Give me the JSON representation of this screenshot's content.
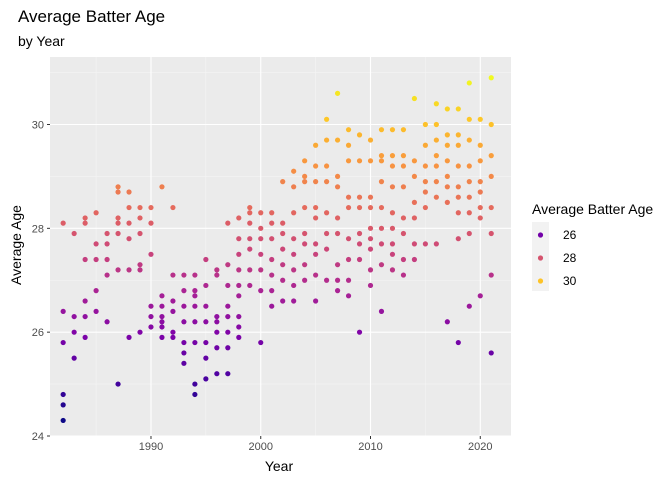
{
  "chart_data": {
    "type": "scatter",
    "title": "Average Batter Age",
    "subtitle": "by Year",
    "xlabel": "Year",
    "ylabel": "Average Age",
    "xlim": [
      1980.8,
      2022.8
    ],
    "ylim": [
      24,
      31.3
    ],
    "x_ticks": [
      1990,
      2000,
      2010,
      2020
    ],
    "y_ticks": [
      24,
      26,
      28,
      30
    ],
    "grid": true,
    "legend": {
      "title": "Average Batter Age",
      "placement": "right",
      "entries": [
        {
          "label": "26",
          "value": 26,
          "color": "#7301a8"
        },
        {
          "label": "28",
          "value": 28,
          "color": "#d5546e"
        },
        {
          "label": "30",
          "value": 30,
          "color": "#fdc328"
        }
      ]
    },
    "color_scale": {
      "min": 24.3,
      "max": 30.9,
      "stops": [
        [
          0.0,
          "#0d0887"
        ],
        [
          0.125,
          "#4c02a1"
        ],
        [
          0.25,
          "#7e03a8"
        ],
        [
          0.375,
          "#a92395"
        ],
        [
          0.5,
          "#cc4778"
        ],
        [
          0.625,
          "#e66c5c"
        ],
        [
          0.75,
          "#f89540"
        ],
        [
          0.875,
          "#fdc527"
        ],
        [
          1.0,
          "#f0f921"
        ]
      ]
    },
    "points": [
      [
        1982,
        28.1
      ],
      [
        1982,
        26.4
      ],
      [
        1982,
        25.8
      ],
      [
        1982,
        24.8
      ],
      [
        1982,
        24.6
      ],
      [
        1982,
        24.3
      ],
      [
        1983,
        27.9
      ],
      [
        1983,
        26.3
      ],
      [
        1983,
        26.0
      ],
      [
        1983,
        25.5
      ],
      [
        1984,
        28.2
      ],
      [
        1984,
        28.1
      ],
      [
        1984,
        27.4
      ],
      [
        1984,
        26.6
      ],
      [
        1984,
        26.3
      ],
      [
        1984,
        25.9
      ],
      [
        1985,
        28.3
      ],
      [
        1985,
        27.7
      ],
      [
        1985,
        27.4
      ],
      [
        1985,
        26.8
      ],
      [
        1985,
        26.4
      ],
      [
        1986,
        27.9
      ],
      [
        1986,
        27.7
      ],
      [
        1986,
        27.4
      ],
      [
        1986,
        27.1
      ],
      [
        1986,
        26.2
      ],
      [
        1987,
        28.8
      ],
      [
        1987,
        28.7
      ],
      [
        1987,
        28.2
      ],
      [
        1987,
        28.1
      ],
      [
        1987,
        27.9
      ],
      [
        1987,
        27.2
      ],
      [
        1987,
        25.0
      ],
      [
        1988,
        28.7
      ],
      [
        1988,
        28.4
      ],
      [
        1988,
        28.1
      ],
      [
        1988,
        27.8
      ],
      [
        1988,
        27.2
      ],
      [
        1988,
        25.9
      ],
      [
        1989,
        28.4
      ],
      [
        1989,
        28.2
      ],
      [
        1989,
        27.9
      ],
      [
        1989,
        27.3
      ],
      [
        1989,
        27.2
      ],
      [
        1989,
        26.0
      ],
      [
        1990,
        28.4
      ],
      [
        1990,
        28.1
      ],
      [
        1990,
        27.5
      ],
      [
        1990,
        26.5
      ],
      [
        1990,
        26.3
      ],
      [
        1990,
        26.1
      ],
      [
        1991,
        28.8
      ],
      [
        1991,
        26.7
      ],
      [
        1991,
        26.5
      ],
      [
        1991,
        26.3
      ],
      [
        1991,
        26.2
      ],
      [
        1991,
        26.1
      ],
      [
        1991,
        25.9
      ],
      [
        1992,
        28.4
      ],
      [
        1992,
        27.1
      ],
      [
        1992,
        26.6
      ],
      [
        1992,
        26.4
      ],
      [
        1992,
        26.0
      ],
      [
        1992,
        25.9
      ],
      [
        1993,
        27.1
      ],
      [
        1993,
        26.8
      ],
      [
        1993,
        26.5
      ],
      [
        1993,
        26.2
      ],
      [
        1993,
        25.8
      ],
      [
        1993,
        25.6
      ],
      [
        1993,
        25.4
      ],
      [
        1994,
        27.1
      ],
      [
        1994,
        26.8
      ],
      [
        1994,
        26.7
      ],
      [
        1994,
        26.5
      ],
      [
        1994,
        26.2
      ],
      [
        1994,
        25.8
      ],
      [
        1994,
        25.0
      ],
      [
        1994,
        24.8
      ],
      [
        1995,
        27.4
      ],
      [
        1995,
        26.9
      ],
      [
        1995,
        26.5
      ],
      [
        1995,
        26.2
      ],
      [
        1995,
        25.8
      ],
      [
        1995,
        25.5
      ],
      [
        1995,
        25.1
      ],
      [
        1996,
        27.2
      ],
      [
        1996,
        27.1
      ],
      [
        1996,
        26.3
      ],
      [
        1996,
        26.2
      ],
      [
        1996,
        26.0
      ],
      [
        1996,
        25.7
      ],
      [
        1996,
        25.2
      ],
      [
        1997,
        28.1
      ],
      [
        1997,
        27.3
      ],
      [
        1997,
        26.9
      ],
      [
        1997,
        26.5
      ],
      [
        1997,
        26.3
      ],
      [
        1997,
        26.0
      ],
      [
        1997,
        25.7
      ],
      [
        1997,
        25.2
      ],
      [
        1998,
        28.2
      ],
      [
        1998,
        27.8
      ],
      [
        1998,
        27.5
      ],
      [
        1998,
        27.2
      ],
      [
        1998,
        26.9
      ],
      [
        1998,
        26.7
      ],
      [
        1998,
        26.3
      ],
      [
        1998,
        26.1
      ],
      [
        1998,
        25.9
      ],
      [
        1999,
        28.4
      ],
      [
        1999,
        28.3
      ],
      [
        1999,
        28.1
      ],
      [
        1999,
        27.8
      ],
      [
        1999,
        27.6
      ],
      [
        1999,
        27.2
      ],
      [
        1999,
        26.9
      ],
      [
        2000,
        28.3
      ],
      [
        2000,
        28.0
      ],
      [
        2000,
        27.8
      ],
      [
        2000,
        27.5
      ],
      [
        2000,
        27.2
      ],
      [
        2000,
        26.8
      ],
      [
        2000,
        25.8
      ],
      [
        2001,
        28.3
      ],
      [
        2001,
        28.1
      ],
      [
        2001,
        27.8
      ],
      [
        2001,
        27.4
      ],
      [
        2001,
        27.1
      ],
      [
        2001,
        26.8
      ],
      [
        2001,
        26.5
      ],
      [
        2002,
        28.9
      ],
      [
        2002,
        28.1
      ],
      [
        2002,
        27.9
      ],
      [
        2002,
        27.6
      ],
      [
        2002,
        27.3
      ],
      [
        2002,
        27.0
      ],
      [
        2002,
        26.6
      ],
      [
        2003,
        29.1
      ],
      [
        2003,
        28.8
      ],
      [
        2003,
        28.3
      ],
      [
        2003,
        27.8
      ],
      [
        2003,
        27.5
      ],
      [
        2003,
        27.2
      ],
      [
        2003,
        26.9
      ],
      [
        2003,
        26.6
      ],
      [
        2004,
        29.3
      ],
      [
        2004,
        29.0
      ],
      [
        2004,
        28.9
      ],
      [
        2004,
        28.4
      ],
      [
        2004,
        27.9
      ],
      [
        2004,
        27.7
      ],
      [
        2004,
        27.3
      ],
      [
        2004,
        27.0
      ],
      [
        2005,
        29.6
      ],
      [
        2005,
        29.2
      ],
      [
        2005,
        28.9
      ],
      [
        2005,
        28.4
      ],
      [
        2005,
        28.2
      ],
      [
        2005,
        27.7
      ],
      [
        2005,
        27.5
      ],
      [
        2005,
        27.1
      ],
      [
        2005,
        26.6
      ],
      [
        2006,
        30.1
      ],
      [
        2006,
        29.7
      ],
      [
        2006,
        29.2
      ],
      [
        2006,
        28.9
      ],
      [
        2006,
        28.3
      ],
      [
        2006,
        27.9
      ],
      [
        2006,
        27.6
      ],
      [
        2006,
        27.0
      ],
      [
        2007,
        30.6
      ],
      [
        2007,
        29.7
      ],
      [
        2007,
        29.0
      ],
      [
        2007,
        28.8
      ],
      [
        2007,
        28.2
      ],
      [
        2007,
        27.9
      ],
      [
        2007,
        27.3
      ],
      [
        2007,
        27.0
      ],
      [
        2007,
        26.8
      ],
      [
        2008,
        29.9
      ],
      [
        2008,
        29.6
      ],
      [
        2008,
        29.3
      ],
      [
        2008,
        28.6
      ],
      [
        2008,
        28.4
      ],
      [
        2008,
        27.8
      ],
      [
        2008,
        27.4
      ],
      [
        2008,
        27.0
      ],
      [
        2008,
        26.7
      ],
      [
        2009,
        29.8
      ],
      [
        2009,
        29.3
      ],
      [
        2009,
        28.6
      ],
      [
        2009,
        28.4
      ],
      [
        2009,
        27.9
      ],
      [
        2009,
        27.7
      ],
      [
        2009,
        27.4
      ],
      [
        2009,
        26.0
      ],
      [
        2010,
        29.7
      ],
      [
        2010,
        29.3
      ],
      [
        2010,
        28.6
      ],
      [
        2010,
        28.4
      ],
      [
        2010,
        28.0
      ],
      [
        2010,
        27.8
      ],
      [
        2010,
        27.6
      ],
      [
        2010,
        27.2
      ],
      [
        2010,
        26.9
      ],
      [
        2011,
        29.9
      ],
      [
        2011,
        29.4
      ],
      [
        2011,
        29.3
      ],
      [
        2011,
        28.9
      ],
      [
        2011,
        28.4
      ],
      [
        2011,
        28.0
      ],
      [
        2011,
        27.7
      ],
      [
        2011,
        27.3
      ],
      [
        2011,
        26.4
      ],
      [
        2012,
        29.9
      ],
      [
        2012,
        29.4
      ],
      [
        2012,
        29.2
      ],
      [
        2012,
        28.8
      ],
      [
        2012,
        28.3
      ],
      [
        2012,
        28.0
      ],
      [
        2012,
        27.7
      ],
      [
        2012,
        27.5
      ],
      [
        2012,
        27.2
      ],
      [
        2013,
        29.9
      ],
      [
        2013,
        29.4
      ],
      [
        2013,
        29.2
      ],
      [
        2013,
        28.8
      ],
      [
        2013,
        28.2
      ],
      [
        2013,
        27.9
      ],
      [
        2013,
        27.4
      ],
      [
        2013,
        27.1
      ],
      [
        2014,
        30.5
      ],
      [
        2014,
        29.3
      ],
      [
        2014,
        29.0
      ],
      [
        2014,
        28.5
      ],
      [
        2014,
        28.2
      ],
      [
        2014,
        27.7
      ],
      [
        2014,
        27.4
      ],
      [
        2015,
        30.0
      ],
      [
        2015,
        29.6
      ],
      [
        2015,
        29.2
      ],
      [
        2015,
        28.9
      ],
      [
        2015,
        28.7
      ],
      [
        2015,
        28.4
      ],
      [
        2015,
        27.7
      ],
      [
        2016,
        30.4
      ],
      [
        2016,
        30.0
      ],
      [
        2016,
        29.7
      ],
      [
        2016,
        29.4
      ],
      [
        2016,
        29.2
      ],
      [
        2016,
        28.9
      ],
      [
        2016,
        28.6
      ],
      [
        2016,
        27.7
      ],
      [
        2017,
        30.3
      ],
      [
        2017,
        29.8
      ],
      [
        2017,
        29.6
      ],
      [
        2017,
        29.3
      ],
      [
        2017,
        29.0
      ],
      [
        2017,
        28.8
      ],
      [
        2017,
        28.5
      ],
      [
        2017,
        26.2
      ],
      [
        2018,
        30.3
      ],
      [
        2018,
        29.8
      ],
      [
        2018,
        29.6
      ],
      [
        2018,
        29.2
      ],
      [
        2018,
        28.8
      ],
      [
        2018,
        28.6
      ],
      [
        2018,
        28.3
      ],
      [
        2018,
        27.8
      ],
      [
        2018,
        25.8
      ],
      [
        2019,
        30.8
      ],
      [
        2019,
        30.1
      ],
      [
        2019,
        29.7
      ],
      [
        2019,
        29.2
      ],
      [
        2019,
        28.9
      ],
      [
        2019,
        28.6
      ],
      [
        2019,
        28.3
      ],
      [
        2019,
        27.9
      ],
      [
        2019,
        26.5
      ],
      [
        2020,
        30.1
      ],
      [
        2020,
        29.6
      ],
      [
        2020,
        29.3
      ],
      [
        2020,
        28.9
      ],
      [
        2020,
        28.7
      ],
      [
        2020,
        28.4
      ],
      [
        2020,
        28.2
      ],
      [
        2020,
        26.7
      ],
      [
        2021,
        30.9
      ],
      [
        2021,
        30.0
      ],
      [
        2021,
        29.4
      ],
      [
        2021,
        29.0
      ],
      [
        2021,
        28.4
      ],
      [
        2021,
        27.9
      ],
      [
        2021,
        27.1
      ],
      [
        2021,
        25.6
      ]
    ]
  }
}
